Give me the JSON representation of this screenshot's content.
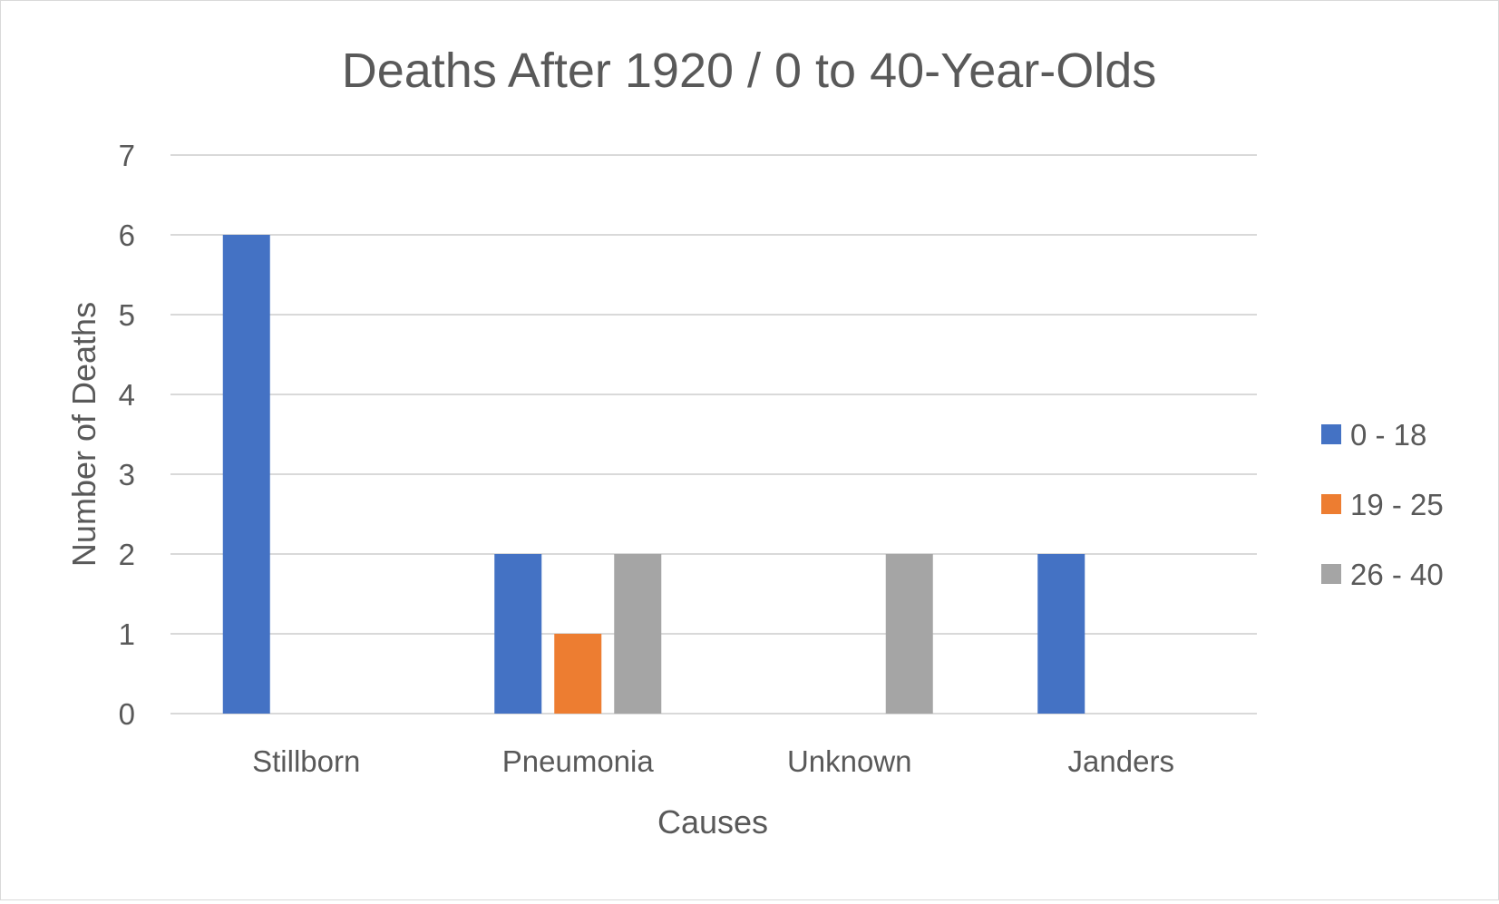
{
  "chart_data": {
    "type": "bar",
    "title": "Deaths After 1920 / 0 to 40-Year-Olds",
    "xlabel": "Causes",
    "ylabel": "Number of Deaths",
    "categories": [
      "Stillborn",
      "Pneumonia",
      "Unknown",
      "Janders"
    ],
    "series": [
      {
        "name": "0 - 18",
        "color": "#4472C4",
        "values": [
          6,
          2,
          0,
          2
        ]
      },
      {
        "name": "19 - 25",
        "color": "#ED7D31",
        "values": [
          0,
          1,
          0,
          0
        ]
      },
      {
        "name": "26 - 40",
        "color": "#A5A5A5",
        "values": [
          0,
          2,
          2,
          0
        ]
      }
    ],
    "ylim": [
      0,
      7
    ],
    "yticks": [
      0,
      1,
      2,
      3,
      4,
      5,
      6,
      7
    ],
    "grid": true,
    "legend_position": "right"
  }
}
